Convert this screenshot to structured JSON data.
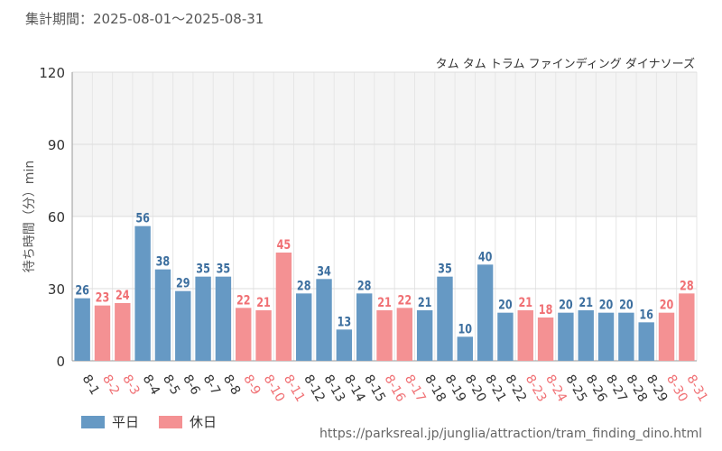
{
  "period_text": "集計期間：2025-08-01～2025-08-31",
  "attraction": "タム タム トラム ファインディング ダイナソーズ",
  "source_url": "https://parksreal.jp/junglia/attraction/tram_finding_dino.html",
  "colors": {
    "weekday": "#6699c4",
    "holiday": "#f49193",
    "weekday_label": "#3d6f9f",
    "holiday_label": "#f07074"
  },
  "chart_data": {
    "type": "bar",
    "ylabel": "待ち時間（分）min",
    "ylim": [
      0,
      120
    ],
    "yticks": [
      0,
      30,
      60,
      90,
      120
    ],
    "grid": true,
    "shaded_band": [
      60,
      120
    ],
    "legend_position": "bottom-left",
    "legend": [
      {
        "name": "平日",
        "key": "weekday"
      },
      {
        "name": "休日",
        "key": "holiday"
      }
    ],
    "categories": [
      "8-1",
      "8-2",
      "8-3",
      "8-4",
      "8-5",
      "8-6",
      "8-7",
      "8-8",
      "8-9",
      "8-10",
      "8-11",
      "8-12",
      "8-13",
      "8-14",
      "8-15",
      "8-16",
      "8-17",
      "8-18",
      "8-19",
      "8-20",
      "8-21",
      "8-22",
      "8-23",
      "8-24",
      "8-25",
      "8-26",
      "8-27",
      "8-28",
      "8-29",
      "8-30",
      "8-31"
    ],
    "values": [
      26,
      23,
      24,
      56,
      38,
      29,
      35,
      35,
      22,
      21,
      45,
      28,
      34,
      13,
      28,
      21,
      22,
      21,
      35,
      10,
      40,
      20,
      21,
      18,
      20,
      21,
      20,
      20,
      16,
      20,
      28
    ],
    "day_type": [
      "weekday",
      "holiday",
      "holiday",
      "weekday",
      "weekday",
      "weekday",
      "weekday",
      "weekday",
      "holiday",
      "holiday",
      "holiday",
      "weekday",
      "weekday",
      "weekday",
      "weekday",
      "holiday",
      "holiday",
      "weekday",
      "weekday",
      "weekday",
      "weekday",
      "weekday",
      "holiday",
      "holiday",
      "weekday",
      "weekday",
      "weekday",
      "weekday",
      "weekday",
      "holiday",
      "holiday"
    ]
  }
}
